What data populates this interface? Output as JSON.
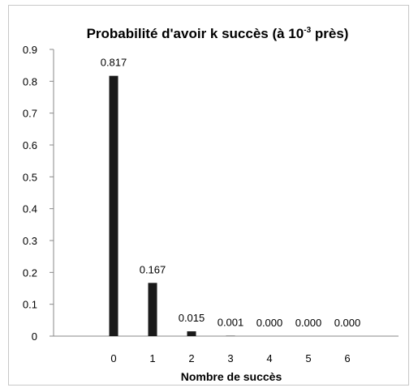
{
  "chart_data": {
    "type": "bar",
    "title_main": "Probabilité d'avoir k succès (à 10",
    "title_exp": "-3",
    "title_end": " près)",
    "xlabel": "Nombre de succès",
    "ylabel": "",
    "categories": [
      "0",
      "1",
      "2",
      "3",
      "4",
      "5",
      "6"
    ],
    "values": [
      0.817,
      0.167,
      0.015,
      0.001,
      0.0,
      0.0,
      0.0
    ],
    "data_labels": [
      "0.817",
      "0.167",
      "0.015",
      "0.001",
      "0.000",
      "0.000",
      "0.000"
    ],
    "ylim": [
      0,
      0.9
    ],
    "yticks": [
      "0",
      "0.1",
      "0.2",
      "0.3",
      "0.4",
      "0.5",
      "0.6",
      "0.7",
      "0.8",
      "0.9"
    ],
    "grid": false,
    "legend": "none",
    "bar_color": "#1a1a1a"
  }
}
